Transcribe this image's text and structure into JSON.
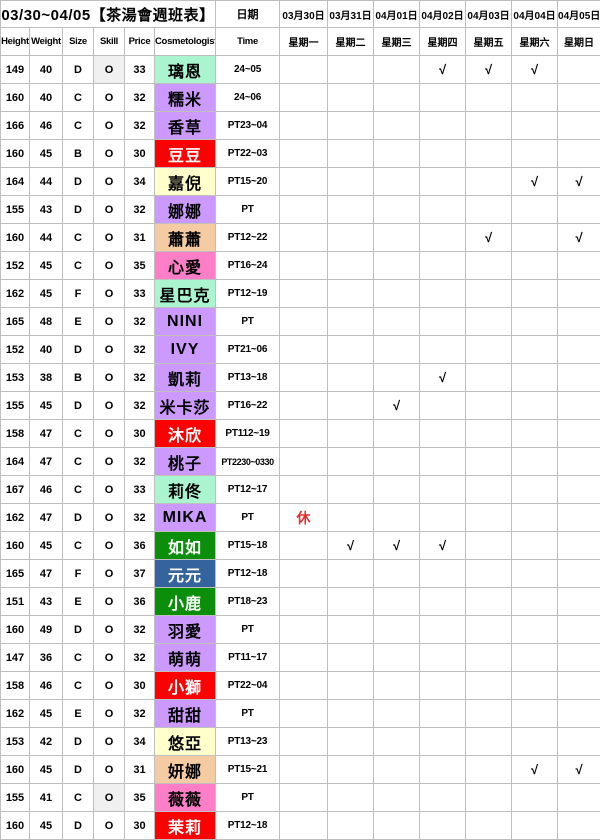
{
  "title": "03/30~04/05【茶湯會週班表】",
  "date_label": "日期",
  "columns": [
    "Height",
    "Weight",
    "Size",
    "Skill",
    "Price",
    "Cosmetologist",
    "Time"
  ],
  "dates": [
    "03月30日",
    "03月31日",
    "04月01日",
    "04月02日",
    "04月03日",
    "04月04日",
    "04月05日"
  ],
  "weekdays": [
    "星期一",
    "星期二",
    "星期三",
    "星期四",
    "星期五",
    "星期六",
    "星期日"
  ],
  "symbols": {
    "check": "√",
    "rest": "休"
  },
  "palette": {
    "mint": "#aaf5cf",
    "purple": "#cc99ff",
    "red": "#ff0000",
    "yellow": "#ffffcc",
    "peach": "#f5cba4",
    "pink": "#ff7ec8",
    "green": "#0b8f0b",
    "blue": "#35639e",
    "skill_gray": "#f0f0f0",
    "border": "#bfbfbf",
    "rest_text": "#e03030",
    "text_black": "#000000",
    "text_white": "#ffffff"
  },
  "rows": [
    {
      "height": "149",
      "weight": "40",
      "size": "D",
      "skill": "O",
      "skill_gray": true,
      "price": "33",
      "name": "璃恩",
      "name_bg": "mint",
      "name_fg": "black",
      "time": "24~05",
      "marks": [
        "",
        "",
        "",
        "√",
        "√",
        "√",
        ""
      ]
    },
    {
      "height": "160",
      "weight": "40",
      "size": "C",
      "skill": "O",
      "skill_gray": false,
      "price": "32",
      "name": "糯米",
      "name_bg": "purple",
      "name_fg": "black",
      "time": "24~06",
      "marks": [
        "",
        "",
        "",
        "",
        "",
        "",
        ""
      ]
    },
    {
      "height": "166",
      "weight": "46",
      "size": "C",
      "skill": "O",
      "skill_gray": false,
      "price": "32",
      "name": "香草",
      "name_bg": "purple",
      "name_fg": "black",
      "time": "PT23~04",
      "marks": [
        "",
        "",
        "",
        "",
        "",
        "",
        ""
      ]
    },
    {
      "height": "160",
      "weight": "45",
      "size": "B",
      "skill": "O",
      "skill_gray": false,
      "price": "30",
      "name": "豆豆",
      "name_bg": "red",
      "name_fg": "white",
      "time": "PT22~03",
      "marks": [
        "",
        "",
        "",
        "",
        "",
        "",
        ""
      ]
    },
    {
      "height": "164",
      "weight": "44",
      "size": "D",
      "skill": "O",
      "skill_gray": false,
      "price": "34",
      "name": "嘉倪",
      "name_bg": "yellow",
      "name_fg": "black",
      "time": "PT15~20",
      "marks": [
        "",
        "",
        "",
        "",
        "",
        "√",
        "√"
      ]
    },
    {
      "height": "155",
      "weight": "43",
      "size": "D",
      "skill": "O",
      "skill_gray": false,
      "price": "32",
      "name": "娜娜",
      "name_bg": "purple",
      "name_fg": "black",
      "time": "PT",
      "marks": [
        "",
        "",
        "",
        "",
        "",
        "",
        ""
      ]
    },
    {
      "height": "160",
      "weight": "44",
      "size": "C",
      "skill": "O",
      "skill_gray": false,
      "price": "31",
      "name": "蕭蕭",
      "name_bg": "peach",
      "name_fg": "black",
      "time": "PT12~22",
      "marks": [
        "",
        "",
        "",
        "",
        "√",
        "",
        "√"
      ]
    },
    {
      "height": "152",
      "weight": "45",
      "size": "C",
      "skill": "O",
      "skill_gray": false,
      "price": "35",
      "name": "心愛",
      "name_bg": "pink",
      "name_fg": "black",
      "time": "PT16~24",
      "marks": [
        "",
        "",
        "",
        "",
        "",
        "",
        ""
      ]
    },
    {
      "height": "162",
      "weight": "45",
      "size": "F",
      "skill": "O",
      "skill_gray": false,
      "price": "33",
      "name": "星巴克",
      "name_bg": "mint",
      "name_fg": "black",
      "time": "PT12~19",
      "marks": [
        "",
        "",
        "",
        "",
        "",
        "",
        ""
      ]
    },
    {
      "height": "165",
      "weight": "48",
      "size": "E",
      "skill": "O",
      "skill_gray": false,
      "price": "32",
      "name": "NINI",
      "name_bg": "purple",
      "name_fg": "black",
      "time": "PT",
      "marks": [
        "",
        "",
        "",
        "",
        "",
        "",
        ""
      ]
    },
    {
      "height": "152",
      "weight": "40",
      "size": "D",
      "skill": "O",
      "skill_gray": false,
      "price": "32",
      "name": "IVY",
      "name_bg": "purple",
      "name_fg": "black",
      "time": "PT21~06",
      "marks": [
        "",
        "",
        "",
        "",
        "",
        "",
        ""
      ]
    },
    {
      "height": "153",
      "weight": "38",
      "size": "B",
      "skill": "O",
      "skill_gray": false,
      "price": "32",
      "name": "凱莉",
      "name_bg": "purple",
      "name_fg": "black",
      "time": "PT13~18",
      "marks": [
        "",
        "",
        "",
        "√",
        "",
        "",
        ""
      ]
    },
    {
      "height": "155",
      "weight": "45",
      "size": "D",
      "skill": "O",
      "skill_gray": false,
      "price": "32",
      "name": "米卡莎",
      "name_bg": "purple",
      "name_fg": "black",
      "time": "PT16~22",
      "marks": [
        "",
        "",
        "√",
        "",
        "",
        "",
        ""
      ]
    },
    {
      "height": "158",
      "weight": "47",
      "size": "C",
      "skill": "O",
      "skill_gray": false,
      "price": "30",
      "name": "沐欣",
      "name_bg": "red",
      "name_fg": "white",
      "time": "PT112~19",
      "marks": [
        "",
        "",
        "",
        "",
        "",
        "",
        ""
      ]
    },
    {
      "height": "164",
      "weight": "47",
      "size": "C",
      "skill": "O",
      "skill_gray": false,
      "price": "32",
      "name": "桃子",
      "name_bg": "purple",
      "name_fg": "black",
      "time": "PT2230~0330",
      "marks": [
        "",
        "",
        "",
        "",
        "",
        "",
        ""
      ]
    },
    {
      "height": "167",
      "weight": "46",
      "size": "C",
      "skill": "O",
      "skill_gray": false,
      "price": "33",
      "name": "莉佟",
      "name_bg": "mint",
      "name_fg": "black",
      "time": "PT12~17",
      "marks": [
        "",
        "",
        "",
        "",
        "",
        "",
        ""
      ]
    },
    {
      "height": "162",
      "weight": "47",
      "size": "D",
      "skill": "O",
      "skill_gray": false,
      "price": "32",
      "name": "MIKA",
      "name_bg": "purple",
      "name_fg": "black",
      "time": "PT",
      "marks": [
        "休",
        "",
        "",
        "",
        "",
        "",
        ""
      ]
    },
    {
      "height": "160",
      "weight": "45",
      "size": "C",
      "skill": "O",
      "skill_gray": false,
      "price": "36",
      "name": "如如",
      "name_bg": "green",
      "name_fg": "white",
      "time": "PT15~18",
      "marks": [
        "",
        "√",
        "√",
        "√",
        "",
        "",
        ""
      ]
    },
    {
      "height": "165",
      "weight": "47",
      "size": "F",
      "skill": "O",
      "skill_gray": false,
      "price": "37",
      "name": "元元",
      "name_bg": "blue",
      "name_fg": "white",
      "time": "PT12~18",
      "marks": [
        "",
        "",
        "",
        "",
        "",
        "",
        ""
      ]
    },
    {
      "height": "151",
      "weight": "43",
      "size": "E",
      "skill": "O",
      "skill_gray": false,
      "price": "36",
      "name": "小鹿",
      "name_bg": "green",
      "name_fg": "white",
      "time": "PT18~23",
      "marks": [
        "",
        "",
        "",
        "",
        "",
        "",
        ""
      ]
    },
    {
      "height": "160",
      "weight": "49",
      "size": "D",
      "skill": "O",
      "skill_gray": false,
      "price": "32",
      "name": "羽愛",
      "name_bg": "purple",
      "name_fg": "black",
      "time": "PT",
      "marks": [
        "",
        "",
        "",
        "",
        "",
        "",
        ""
      ]
    },
    {
      "height": "147",
      "weight": "36",
      "size": "C",
      "skill": "O",
      "skill_gray": false,
      "price": "32",
      "name": "萌萌",
      "name_bg": "purple",
      "name_fg": "black",
      "time": "PT11~17",
      "marks": [
        "",
        "",
        "",
        "",
        "",
        "",
        ""
      ]
    },
    {
      "height": "158",
      "weight": "46",
      "size": "C",
      "skill": "O",
      "skill_gray": false,
      "price": "30",
      "name": "小獅",
      "name_bg": "red",
      "name_fg": "white",
      "time": "PT22~04",
      "marks": [
        "",
        "",
        "",
        "",
        "",
        "",
        ""
      ]
    },
    {
      "height": "162",
      "weight": "45",
      "size": "E",
      "skill": "O",
      "skill_gray": false,
      "price": "32",
      "name": "甜甜",
      "name_bg": "purple",
      "name_fg": "black",
      "time": "PT",
      "marks": [
        "",
        "",
        "",
        "",
        "",
        "",
        ""
      ]
    },
    {
      "height": "153",
      "weight": "42",
      "size": "D",
      "skill": "O",
      "skill_gray": false,
      "price": "34",
      "name": "悠亞",
      "name_bg": "yellow",
      "name_fg": "black",
      "time": "PT13~23",
      "marks": [
        "",
        "",
        "",
        "",
        "",
        "",
        ""
      ]
    },
    {
      "height": "160",
      "weight": "45",
      "size": "D",
      "skill": "O",
      "skill_gray": false,
      "price": "31",
      "name": "妍娜",
      "name_bg": "peach",
      "name_fg": "black",
      "time": "PT15~21",
      "marks": [
        "",
        "",
        "",
        "",
        "",
        "√",
        "√"
      ]
    },
    {
      "height": "155",
      "weight": "41",
      "size": "C",
      "skill": "O",
      "skill_gray": true,
      "price": "35",
      "name": "薇薇",
      "name_bg": "pink",
      "name_fg": "black",
      "time": "PT",
      "marks": [
        "",
        "",
        "",
        "",
        "",
        "",
        ""
      ]
    },
    {
      "height": "160",
      "weight": "45",
      "size": "D",
      "skill": "O",
      "skill_gray": false,
      "price": "30",
      "name": "茉莉",
      "name_bg": "red",
      "name_fg": "white",
      "time": "PT12~18",
      "marks": [
        "",
        "",
        "",
        "",
        "",
        "",
        ""
      ]
    }
  ]
}
